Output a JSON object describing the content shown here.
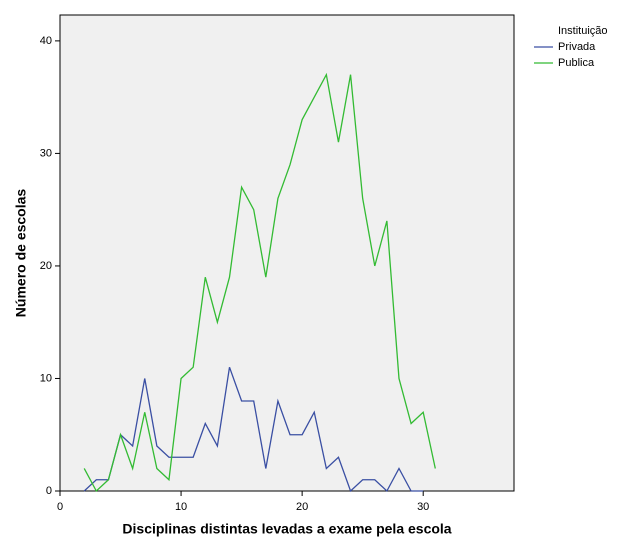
{
  "chart_data": {
    "type": "line",
    "x_label": "Disciplinas distintas levadas a exame pela escola",
    "y_label": "Número de escolas",
    "legend_title": "Instituição",
    "x": [
      2,
      3,
      4,
      5,
      6,
      7,
      8,
      9,
      10,
      11,
      12,
      13,
      14,
      15,
      16,
      17,
      18,
      19,
      20,
      21,
      22,
      23,
      24,
      25,
      26,
      27,
      28,
      29,
      30,
      31
    ],
    "series": [
      {
        "name": "Privada",
        "color": "#3a4fa3",
        "values": [
          0,
          1,
          1,
          5,
          4,
          10,
          4,
          3,
          3,
          3,
          6,
          4,
          11,
          8,
          8,
          2,
          8,
          5,
          5,
          7,
          2,
          3,
          0,
          1,
          1,
          0,
          2,
          0,
          0,
          null
        ]
      },
      {
        "name": "Publica",
        "color": "#33bb33",
        "values": [
          2,
          0,
          1,
          5,
          2,
          7,
          2,
          1,
          10,
          11,
          19,
          15,
          19,
          27,
          25,
          19,
          26,
          29,
          33,
          35,
          37,
          31,
          37,
          26,
          20,
          24,
          10,
          6,
          7,
          2
        ]
      }
    ],
    "xlim": [
      0,
      37.5
    ],
    "ylim": [
      0,
      42.3
    ],
    "xticks": [
      0,
      10,
      20,
      30
    ],
    "yticks": [
      0,
      10,
      20,
      30,
      40
    ]
  }
}
